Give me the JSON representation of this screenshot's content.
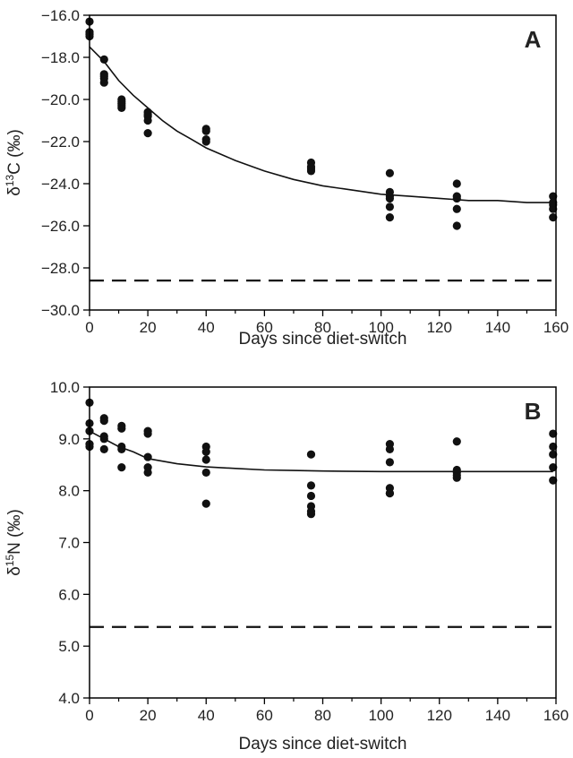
{
  "chart_data": [
    {
      "type": "scatter",
      "panel_label": "A",
      "xlabel": "Days since diet-switch",
      "ylabel": "δ13C (‰)",
      "xlim": [
        0,
        160
      ],
      "ylim": [
        -30.0,
        -16.0
      ],
      "xticks": [
        0,
        20,
        40,
        60,
        80,
        100,
        120,
        140,
        160
      ],
      "yticks": [
        -16.0,
        -18.0,
        -20.0,
        -22.0,
        -24.0,
        -26.0,
        -28.0,
        -30.0
      ],
      "xtick_labels": [
        "0",
        "20",
        "40",
        "60",
        "80",
        "100",
        "120",
        "140",
        "160"
      ],
      "ytick_labels": [
        "−16.0",
        "−18.0",
        "−20.0",
        "−22.0",
        "−24.0",
        "−26.0",
        "−28.0",
        "−30.0"
      ],
      "grid": false,
      "series": [
        {
          "kind": "points",
          "x": [
            0,
            0,
            0,
            0,
            5,
            5,
            5,
            5,
            5,
            11,
            11,
            11,
            11,
            11,
            20,
            20,
            20,
            20,
            20,
            40,
            40,
            40,
            40,
            76,
            76,
            76,
            76,
            103,
            103,
            103,
            103,
            103,
            103,
            126,
            126,
            126,
            126,
            126,
            159,
            159,
            159,
            159,
            159
          ],
          "y": [
            -16.3,
            -16.8,
            -17.0,
            -16.9,
            -18.1,
            -18.8,
            -19.0,
            -19.2,
            -18.9,
            -20.0,
            -20.2,
            -20.4,
            -20.3,
            -20.1,
            -20.6,
            -20.8,
            -21.0,
            -21.6,
            -20.7,
            -21.4,
            -21.5,
            -21.9,
            -22.0,
            -23.0,
            -23.3,
            -23.4,
            -23.2,
            -23.5,
            -24.4,
            -24.6,
            -24.7,
            -25.1,
            -25.6,
            -24.0,
            -24.6,
            -24.7,
            -25.2,
            -26.0,
            -24.6,
            -25.0,
            -25.2,
            -25.6,
            -24.9
          ]
        },
        {
          "kind": "fit",
          "x": [
            0,
            5,
            10,
            15,
            20,
            25,
            30,
            35,
            40,
            50,
            60,
            70,
            80,
            90,
            100,
            110,
            120,
            130,
            140,
            150,
            159
          ],
          "y": [
            -17.5,
            -18.2,
            -19.1,
            -19.8,
            -20.4,
            -21.0,
            -21.5,
            -21.9,
            -22.3,
            -22.9,
            -23.4,
            -23.8,
            -24.1,
            -24.3,
            -24.5,
            -24.6,
            -24.7,
            -24.8,
            -24.8,
            -24.9,
            -24.9
          ]
        },
        {
          "kind": "reference",
          "style": "dashed",
          "x": [
            0,
            159
          ],
          "y": [
            -28.6,
            -28.6
          ]
        }
      ]
    },
    {
      "type": "scatter",
      "panel_label": "B",
      "xlabel": "Days since diet-switch",
      "ylabel": "δ15N (‰)",
      "xlim": [
        0,
        160
      ],
      "ylim": [
        4.0,
        10.0
      ],
      "xticks": [
        0,
        20,
        40,
        60,
        80,
        100,
        120,
        140,
        160
      ],
      "yticks": [
        4.0,
        5.0,
        6.0,
        7.0,
        8.0,
        9.0,
        10.0
      ],
      "xtick_labels": [
        "0",
        "20",
        "40",
        "60",
        "80",
        "100",
        "120",
        "140",
        "160"
      ],
      "ytick_labels": [
        "4.0",
        "5.0",
        "6.0",
        "7.0",
        "8.0",
        "9.0",
        "10.0"
      ],
      "grid": false,
      "series": [
        {
          "kind": "points",
          "x": [
            0,
            0,
            0,
            0,
            0,
            5,
            5,
            5,
            5,
            5,
            11,
            11,
            11,
            11,
            11,
            20,
            20,
            20,
            20,
            20,
            40,
            40,
            40,
            40,
            40,
            76,
            76,
            76,
            76,
            76,
            76,
            103,
            103,
            103,
            103,
            103,
            103,
            126,
            126,
            126,
            126,
            126,
            159,
            159,
            159,
            159,
            159
          ],
          "y": [
            9.7,
            9.3,
            9.15,
            8.85,
            8.9,
            9.4,
            9.35,
            9.05,
            9.0,
            8.8,
            9.25,
            9.2,
            8.85,
            8.8,
            8.45,
            9.15,
            9.1,
            8.65,
            8.45,
            8.35,
            8.85,
            8.75,
            8.6,
            8.35,
            7.75,
            8.7,
            8.1,
            7.9,
            7.7,
            7.55,
            7.6,
            8.9,
            8.8,
            8.55,
            8.05,
            7.95,
            7.95,
            8.95,
            8.4,
            8.35,
            8.3,
            8.25,
            9.1,
            8.85,
            8.7,
            8.45,
            8.2
          ]
        },
        {
          "kind": "fit",
          "x": [
            0,
            5,
            10,
            15,
            20,
            30,
            40,
            50,
            60,
            70,
            80,
            100,
            120,
            140,
            159
          ],
          "y": [
            9.15,
            9.0,
            8.85,
            8.75,
            8.62,
            8.52,
            8.46,
            8.43,
            8.4,
            8.39,
            8.38,
            8.37,
            8.37,
            8.37,
            8.37
          ]
        },
        {
          "kind": "reference",
          "style": "dashed",
          "x": [
            0,
            159
          ],
          "y": [
            5.37,
            5.37
          ]
        }
      ]
    }
  ]
}
